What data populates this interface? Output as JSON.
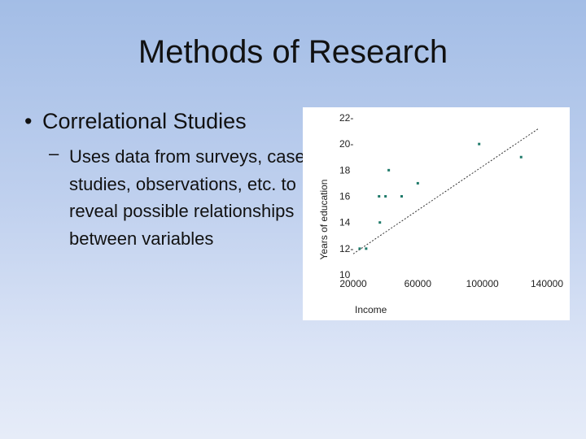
{
  "slide": {
    "title": "Methods of Research",
    "bullet": "Correlational Studies",
    "sub_bullet_dash": "–",
    "sub_bullet": "Uses data from surveys, case studies, observations, etc. to reveal possible relationships between variables"
  },
  "chart_data": {
    "type": "scatter",
    "title": "",
    "xlabel": "Income",
    "ylabel": "Years of education",
    "xlim": [
      20000,
      140000
    ],
    "ylim": [
      10,
      22
    ],
    "x_ticks": [
      20000,
      60000,
      100000,
      140000
    ],
    "x_tick_labels": [
      "20000",
      "60000",
      "100000",
      "140000"
    ],
    "y_ticks": [
      10,
      12,
      14,
      16,
      18,
      20,
      22
    ],
    "y_tick_labels": [
      "10",
      "12-",
      "14",
      "16",
      "18",
      "20-",
      "22-"
    ],
    "grid": false,
    "point_color": "#1f7a6a",
    "trend_line": {
      "from": [
        20000,
        11.6
      ],
      "to": [
        135000,
        21.2
      ],
      "style": "dashed"
    },
    "points": [
      {
        "x": 24000,
        "y": 12
      },
      {
        "x": 28000,
        "y": 12
      },
      {
        "x": 36000,
        "y": 16
      },
      {
        "x": 36500,
        "y": 14
      },
      {
        "x": 40000,
        "y": 16
      },
      {
        "x": 42000,
        "y": 18
      },
      {
        "x": 50000,
        "y": 16
      },
      {
        "x": 60000,
        "y": 17
      },
      {
        "x": 98000,
        "y": 20
      },
      {
        "x": 124000,
        "y": 19
      }
    ]
  }
}
